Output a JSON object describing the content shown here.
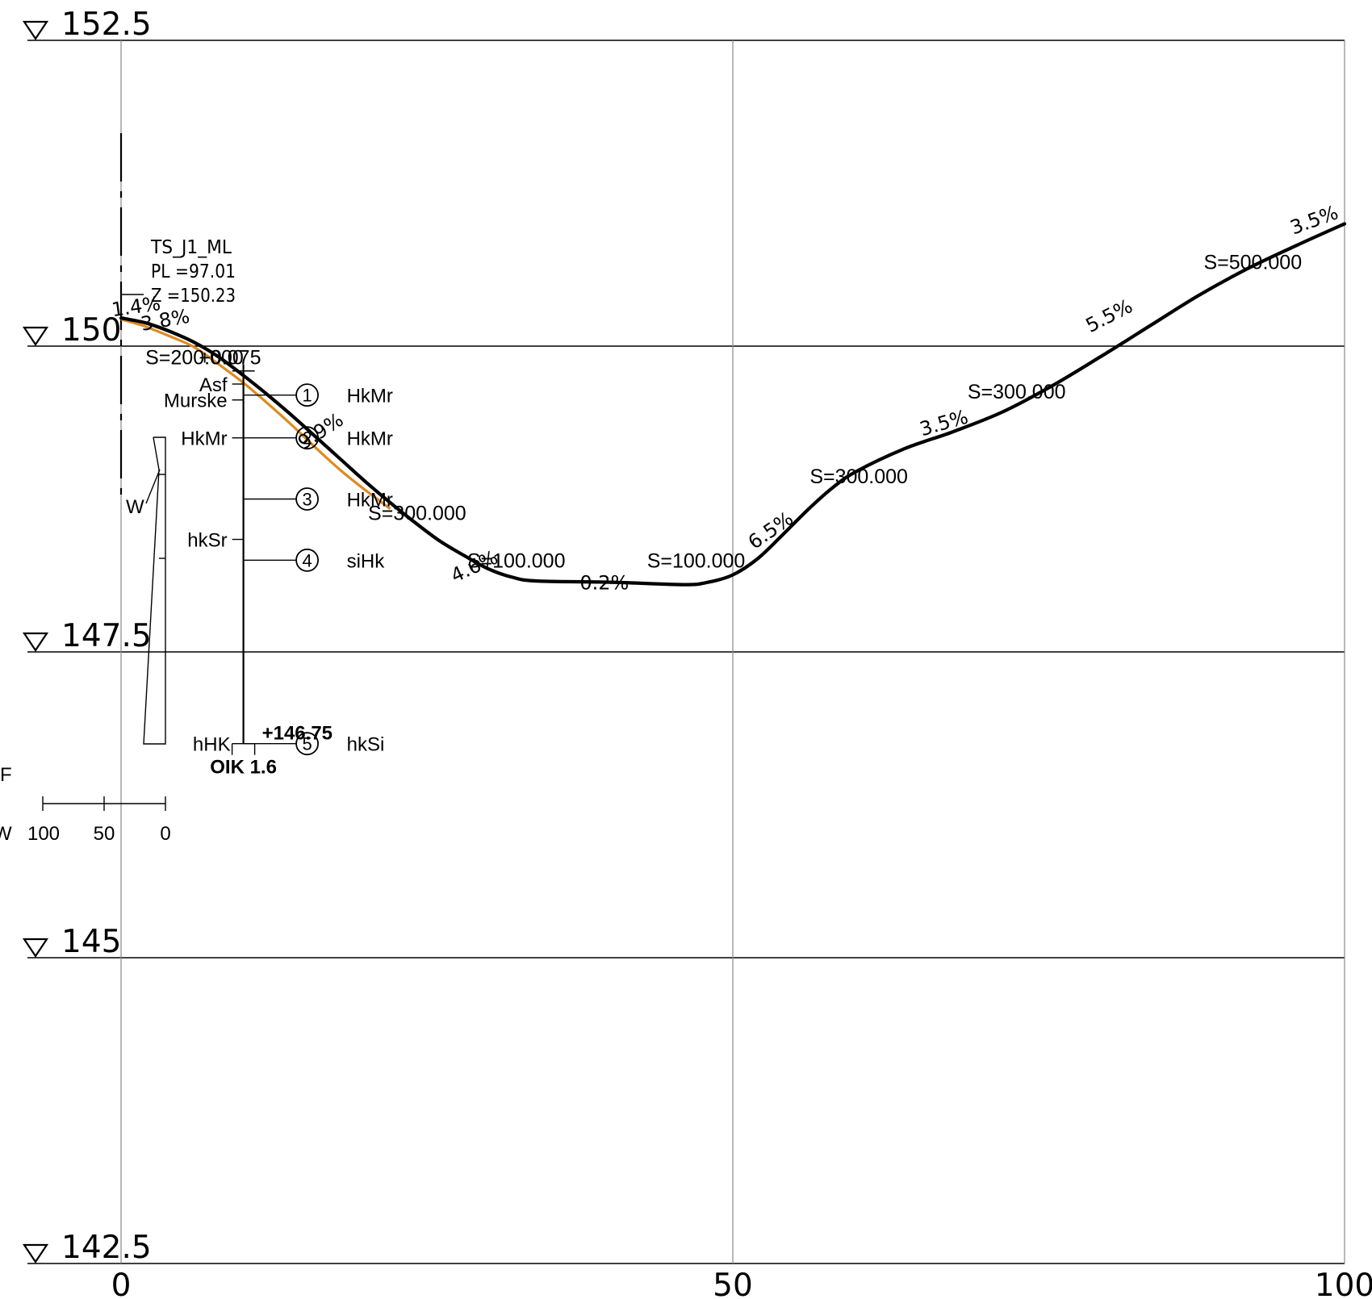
{
  "elevation_labels": [
    "152.5",
    "150",
    "147.5",
    "145",
    "142.5"
  ],
  "station_labels": [
    "0",
    "50",
    "100"
  ],
  "chart_data": {
    "type": "line",
    "xlim": [
      0,
      100
    ],
    "ylim": [
      142.5,
      152.5
    ],
    "elevation_ticks": [
      152.5,
      150,
      147.5,
      145,
      142.5
    ],
    "station_ticks": [
      0,
      50,
      100
    ],
    "ground_profile": {
      "x": [
        0,
        2,
        4,
        6,
        8,
        10,
        12,
        14,
        16,
        18,
        20,
        22,
        24,
        26,
        28,
        30,
        32,
        34,
        40,
        46,
        48,
        50,
        52,
        54,
        56,
        58,
        60,
        64,
        68,
        72,
        76,
        80,
        84,
        88,
        92,
        96,
        100
      ],
      "y": [
        150.23,
        150.19,
        150.12,
        150.03,
        149.91,
        149.76,
        149.6,
        149.43,
        149.25,
        149.07,
        148.89,
        148.72,
        148.56,
        148.41,
        148.29,
        148.18,
        148.11,
        148.08,
        148.07,
        148.05,
        148.07,
        148.13,
        148.26,
        148.45,
        148.65,
        148.83,
        148.97,
        149.16,
        149.3,
        149.46,
        149.67,
        149.91,
        150.16,
        150.41,
        150.63,
        150.82,
        151.0
      ]
    },
    "fill_profile": {
      "x": [
        0,
        2,
        4,
        6,
        8,
        10,
        12,
        14,
        16,
        18,
        20,
        22
      ],
      "y": [
        150.22,
        150.16,
        150.08,
        149.99,
        149.85,
        149.7,
        149.53,
        149.35,
        149.16,
        148.98,
        148.82,
        148.67
      ]
    },
    "slope_labels": [
      {
        "text": "1.4%",
        "x": 1.3,
        "y": 150.27,
        "angle": -8
      },
      {
        "text": "3.8%",
        "x": 3.7,
        "y": 150.16,
        "angle": -10
      },
      {
        "text": "9.9%",
        "x": 16.6,
        "y": 149.26,
        "angle": -33
      },
      {
        "text": "4.6%",
        "x": 29.1,
        "y": 148.15,
        "angle": -25
      },
      {
        "text": "0.2%",
        "x": 39.5,
        "y": 148.01,
        "angle": 0
      },
      {
        "text": "6.5%",
        "x": 53.4,
        "y": 148.45,
        "angle": -35
      },
      {
        "text": "3.5%",
        "x": 67.4,
        "y": 149.32,
        "angle": -16
      },
      {
        "text": "5.5%",
        "x": 81.0,
        "y": 150.2,
        "angle": -27
      },
      {
        "text": "3.5%",
        "x": 97.7,
        "y": 150.98,
        "angle": -20
      }
    ],
    "curve_labels": [
      {
        "text": "S=200.000",
        "x": 6.0,
        "y": 149.85
      },
      {
        "text": "+0.075",
        "x": 8.9,
        "y": 149.85
      },
      {
        "text": "S=300.000",
        "x": 24.2,
        "y": 148.58
      },
      {
        "text": "S=100.000",
        "x": 32.3,
        "y": 148.19
      },
      {
        "text": "S=100.000",
        "x": 47.0,
        "y": 148.19
      },
      {
        "text": "S=300.000",
        "x": 60.3,
        "y": 148.88
      },
      {
        "text": "S=300.000",
        "x": 73.2,
        "y": 149.57
      },
      {
        "text": "S=500.000",
        "x": 92.5,
        "y": 150.63
      }
    ],
    "borehole": {
      "station": 10,
      "pen_top": 149.85,
      "pen_bottom": 146.75,
      "level_label": "+146.75",
      "method_label": "OIK 1.6",
      "base_label": "hHK",
      "left_layers": [
        {
          "label": "Asf",
          "y": 149.69
        },
        {
          "label": "Murske",
          "y": 149.56
        },
        {
          "label": "HkMr",
          "y": 149.25
        },
        {
          "label": "hkSr",
          "y": 148.42
        }
      ],
      "samples": [
        {
          "num": "1",
          "soil": "HkMr",
          "y": 149.6
        },
        {
          "num": "2",
          "soil": "HkMr",
          "y": 149.25
        },
        {
          "num": "3",
          "soil": "HkMr",
          "y": 148.75
        },
        {
          "num": "4",
          "soil": "siHk",
          "y": 148.25
        },
        {
          "num": "5",
          "soil": "hkSi",
          "y": 146.75
        }
      ]
    },
    "water_content": {
      "label": "W",
      "side_labels": [
        "F",
        "W"
      ],
      "scale_labels": [
        "100",
        "50",
        "0"
      ]
    }
  },
  "point_info": {
    "line1": "TS_J1_ML",
    "line2": "PL =97.01",
    "line3": "Z =150.23"
  }
}
